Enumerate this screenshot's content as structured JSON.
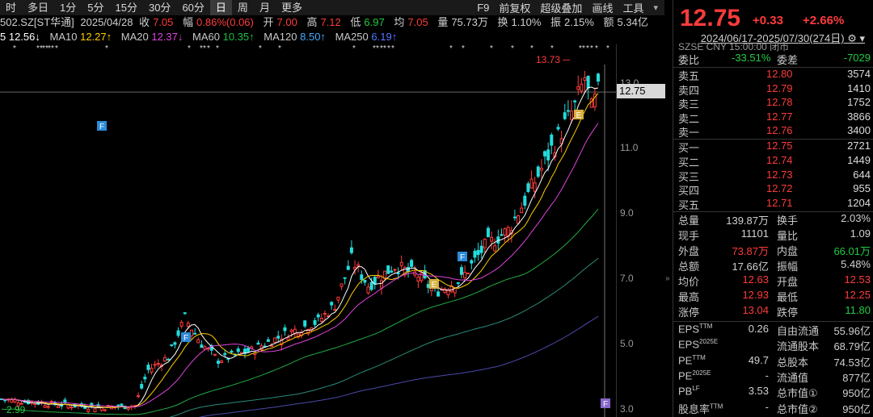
{
  "toolbar": {
    "tabs": [
      "时",
      "多日",
      "1分",
      "5分",
      "15分",
      "30分",
      "60分",
      "日",
      "周",
      "月",
      "更多"
    ],
    "active": "日",
    "right": [
      "F9",
      "前复权",
      "超级叠加",
      "画线",
      "工具"
    ]
  },
  "quote_line": {
    "code": "502.SZ[ST华通]",
    "date": "2025/04/28",
    "close_label": "收",
    "close": "7.05",
    "amp_label": "幅",
    "amp": "0.86%(0.06)",
    "open_label": "开",
    "open": "7.00",
    "high_label": "高",
    "high": "7.12",
    "low_label": "低",
    "low": "6.97",
    "avg_label": "均",
    "avg": "7.05",
    "vol_label": "量",
    "vol": "75.73万",
    "turn_label": "换",
    "turn": "1.10%",
    "swing_label": "振",
    "swing": "2.15%",
    "amt_label": "额",
    "amt": "5.34亿"
  },
  "ma_line": {
    "ma5": "5 12.56↓",
    "ma10_label": "MA10",
    "ma10": "12.27↑",
    "ma20_label": "MA20",
    "ma20": "12.37↓",
    "ma60_label": "MA60",
    "ma60": "10.35↑",
    "ma120_label": "MA120",
    "ma120": "8.50↑",
    "ma250_label": "MA250",
    "ma250": "6.19↑",
    "range": "2024/06/17-2025/07/30(274日)"
  },
  "chart_data": {
    "type": "candlestick",
    "y_ticks": [
      "13.0",
      "11.0",
      "9.0",
      "7.0",
      "5.0",
      "3.0"
    ],
    "ylim": [
      3.0,
      13.73
    ],
    "max_label": "13.73",
    "min_label": "2.99",
    "current_price_tag": "12.75",
    "markers": [
      "F",
      "F",
      "F",
      "E",
      "E",
      "F"
    ]
  },
  "side": {
    "price": "12.75",
    "change": "+0.33",
    "change_pct": "+2.66%",
    "exchange": "SZSE  CNY  15:00:00  闭市",
    "wb_label": "委比",
    "wb": "-33.51%",
    "wc_label": "委差",
    "wc": "-7029",
    "asks": [
      {
        "label": "卖五",
        "price": "12.80",
        "vol": "3574"
      },
      {
        "label": "卖四",
        "price": "12.79",
        "vol": "1410"
      },
      {
        "label": "卖三",
        "price": "12.78",
        "vol": "1752"
      },
      {
        "label": "卖二",
        "price": "12.77",
        "vol": "3866"
      },
      {
        "label": "卖一",
        "price": "12.76",
        "vol": "3400"
      }
    ],
    "bids": [
      {
        "label": "买一",
        "price": "12.75",
        "vol": "2721"
      },
      {
        "label": "买二",
        "price": "12.74",
        "vol": "1449"
      },
      {
        "label": "买三",
        "price": "12.73",
        "vol": "644"
      },
      {
        "label": "买四",
        "price": "12.72",
        "vol": "955"
      },
      {
        "label": "买五",
        "price": "12.71",
        "vol": "1204"
      }
    ],
    "stats": [
      {
        "l1": "总量",
        "v1": "139.87万",
        "l2": "换手",
        "v2": "2.03%",
        "c1": "#d0d0d0",
        "c2": "#d0d0d0"
      },
      {
        "l1": "现手",
        "v1": "11101",
        "l2": "量比",
        "v2": "1.09",
        "c1": "#d0d0d0",
        "c2": "#d0d0d0"
      },
      {
        "l1": "外盘",
        "v1": "73.87万",
        "l2": "内盘",
        "v2": "66.01万",
        "c1": "#ff3b3b",
        "c2": "#22cc44"
      },
      {
        "l1": "总额",
        "v1": "17.66亿",
        "l2": "振幅",
        "v2": "5.48%",
        "c1": "#d0d0d0",
        "c2": "#d0d0d0"
      },
      {
        "l1": "均价",
        "v1": "12.63",
        "l2": "开盘",
        "v2": "12.53",
        "c1": "#ff3b3b",
        "c2": "#ff3b3b"
      },
      {
        "l1": "最高",
        "v1": "12.93",
        "l2": "最低",
        "v2": "12.25",
        "c1": "#ff3b3b",
        "c2": "#ff3b3b"
      },
      {
        "l1": "涨停",
        "v1": "13.04",
        "l2": "跌停",
        "v2": "11.80",
        "c1": "#ff3b3b",
        "c2": "#22cc44"
      }
    ],
    "fin": [
      {
        "l1": "EPS",
        "s1": "TTM",
        "v1": "0.26",
        "l2": "自由流通",
        "v2": "55.96亿"
      },
      {
        "l1": "EPS",
        "s1": "2025E",
        "v1": "",
        "l2": "流通股本",
        "v2": "68.79亿"
      },
      {
        "l1": "PE",
        "s1": "TTM",
        "v1": "49.7",
        "l2": "总股本",
        "v2": "74.53亿"
      },
      {
        "l1": "PE",
        "s1": "2025E",
        "v1": "-",
        "l2": "流通值",
        "v2": "877亿"
      },
      {
        "l1": "PB",
        "s1": "LF",
        "v1": "3.53",
        "l2": "总市值①",
        "v2": "950亿"
      },
      {
        "l1": "股息率",
        "s1": "TTM",
        "v1": "-",
        "l2": "总市值②",
        "v2": "950亿"
      }
    ]
  }
}
